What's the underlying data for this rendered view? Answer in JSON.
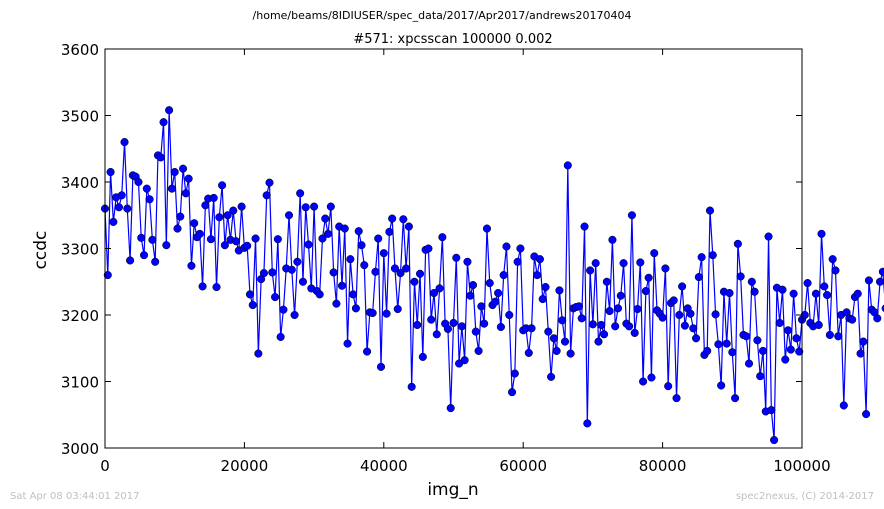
{
  "header": {
    "path": "/home/beams/8IDIUSER/spec_data/2017/Apr2017/andrews20170404"
  },
  "footer": {
    "timestamp": "Sat Apr 08 03:44:01 2017",
    "credit": "spec2nexus, (C) 2014-2017"
  },
  "colors": {
    "series": "#0000ff",
    "axes": "#000000",
    "footer": "#bfbfbf"
  },
  "chart_data": {
    "type": "line",
    "markers": "circle",
    "title": "#571: xpcsscan 100000 0.002",
    "xlabel": "img_n",
    "ylabel": "ccdc",
    "xlim": [
      0,
      100000
    ],
    "ylim": [
      3000,
      3600
    ],
    "xticks": [
      0,
      20000,
      40000,
      60000,
      80000,
      100000
    ],
    "xtick_labels": [
      "0",
      "20000",
      "40000",
      "60000",
      "80000",
      "100000"
    ],
    "yticks": [
      3000,
      3100,
      3200,
      3300,
      3400,
      3500,
      3600
    ],
    "ytick_labels": [
      "3000",
      "3100",
      "3200",
      "3300",
      "3400",
      "3500",
      "3600"
    ],
    "grid": false,
    "series": [
      {
        "x_start": 0,
        "x_step": 400,
        "values": [
          3360,
          3260,
          3415,
          3340,
          3377,
          3362,
          3380,
          3460,
          3360,
          3282,
          3410,
          3408,
          3400,
          3316,
          3290,
          3390,
          3374,
          3313,
          3280,
          3440,
          3437,
          3490,
          3305,
          3508,
          3390,
          3415,
          3330,
          3348,
          3420,
          3383,
          3405,
          3274,
          3338,
          3317,
          3322,
          3243,
          3365,
          3375,
          3314,
          3376,
          3242,
          3347,
          3395,
          3305,
          3350,
          3313,
          3357,
          3311,
          3297,
          3363,
          3301,
          3304,
          3231,
          3215,
          3315,
          3142,
          3254,
          3263,
          3380,
          3399,
          3264,
          3227,
          3314,
          3167,
          3208,
          3270,
          3350,
          3268,
          3200,
          3280,
          3383,
          3250,
          3362,
          3306,
          3240,
          3363,
          3236,
          3231,
          3315,
          3345,
          3322,
          3363,
          3264,
          3217,
          3333,
          3244,
          3330,
          3157,
          3284,
          3231,
          3210,
          3326,
          3305,
          3275,
          3145,
          3204,
          3203,
          3265,
          3315,
          3122,
          3293,
          3202,
          3325,
          3345,
          3270,
          3209,
          3263,
          3344,
          3270,
          3333,
          3092,
          3250,
          3185,
          3262,
          3137,
          3298,
          3300,
          3193,
          3233,
          3171,
          3240,
          3317,
          3187,
          3179,
          3060,
          3188,
          3286,
          3127,
          3183,
          3132,
          3280,
          3229,
          3245,
          3175,
          3146,
          3213,
          3187,
          3330,
          3248,
          3215,
          3220,
          3233,
          3182,
          3260,
          3303,
          3200,
          3084,
          3112,
          3280,
          3300,
          3177,
          3180,
          3143,
          3180,
          3288,
          3260,
          3284,
          3224,
          3242,
          3175,
          3107,
          3165,
          3146,
          3237,
          3192,
          3160,
          3425,
          3142,
          3210,
          3212,
          3213,
          3195,
          3333,
          3037,
          3267,
          3186,
          3278,
          3160,
          3185,
          3171,
          3250,
          3206,
          3313,
          3183,
          3210,
          3229,
          3278,
          3187,
          3183,
          3350,
          3173,
          3209,
          3279,
          3100,
          3236,
          3256,
          3106,
          3293,
          3207,
          3202,
          3196,
          3270,
          3093,
          3218,
          3222,
          3075,
          3200,
          3243,
          3184,
          3210,
          3202,
          3180,
          3165,
          3257,
          3287,
          3140,
          3146,
          3357,
          3290,
          3201,
          3156,
          3094,
          3235,
          3157,
          3233,
          3144,
          3075,
          3307,
          3258,
          3170,
          3168,
          3127,
          3250,
          3235,
          3162,
          3108,
          3146,
          3055,
          3318,
          3057,
          3012,
          3241,
          3188,
          3238,
          3133,
          3177,
          3148,
          3232,
          3165,
          3145,
          3193,
          3200,
          3248,
          3188,
          3183,
          3232,
          3185,
          3322,
          3243,
          3230,
          3170,
          3284,
          3267,
          3168,
          3200,
          3064,
          3204,
          3195,
          3193,
          3227,
          3232,
          3142,
          3160,
          3051,
          3252,
          3208,
          3204,
          3195,
          3250,
          3265,
          3210,
          3285,
          3218,
          3222,
          3193,
          3125,
          3230,
          3227,
          3148,
          3162,
          3230,
          3115,
          3205,
          3185,
          3168,
          3135,
          3252,
          3230,
          3215,
          3126,
          3192,
          3140,
          3164,
          3137,
          3130,
          3205,
          3215
        ]
      }
    ]
  }
}
